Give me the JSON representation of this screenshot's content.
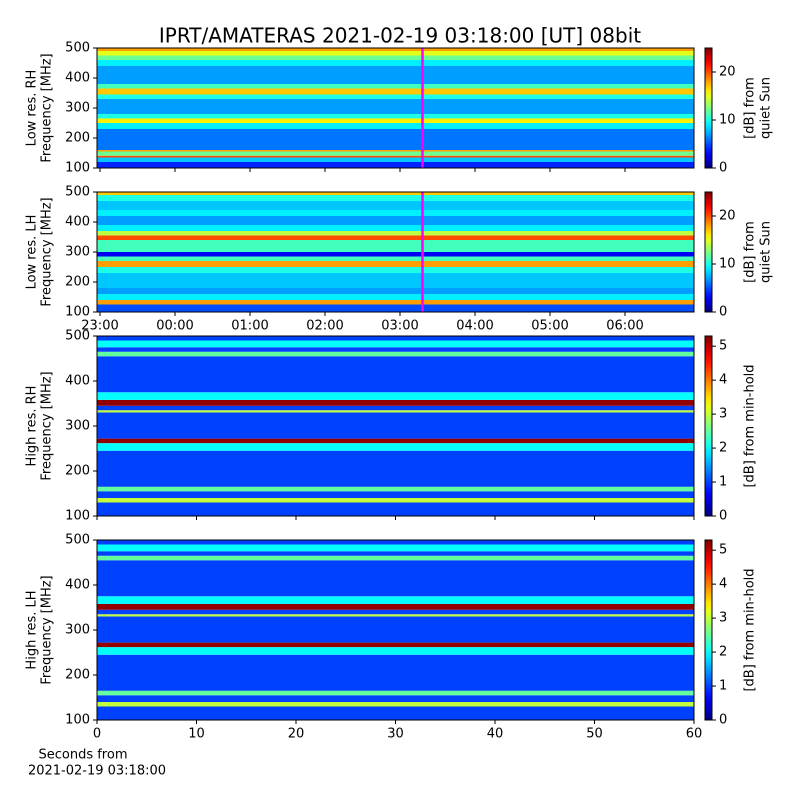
{
  "title": "IPRT/AMATERAS 2021-02-19 03:18:00 [UT]   08bit",
  "chart_data": [
    {
      "type": "spectrogram",
      "ylabel": [
        "Low res. RH",
        "Frequency [MHz]"
      ],
      "ylim": [
        100,
        500
      ],
      "yticks": [
        100,
        200,
        300,
        400,
        500
      ],
      "xlim": [
        22.96,
        30.92
      ],
      "xticks": [
        23,
        24,
        25,
        26,
        27,
        28,
        29,
        30
      ],
      "show_xticklabels": false,
      "freq_edges": [
        100,
        120,
        135,
        141,
        155,
        160,
        230,
        250,
        265,
        280,
        330,
        345,
        365,
        380,
        440,
        460,
        475,
        490,
        500
      ],
      "values": [
        4,
        8,
        20,
        12,
        18,
        6,
        9,
        16,
        10,
        7,
        10,
        17,
        11,
        7,
        9,
        12,
        15,
        18
      ],
      "markers": [
        {
          "x": 27.3,
          "color": "#ff00ff"
        }
      ],
      "cmap": "jet",
      "clim": [
        0,
        25
      ],
      "cticks": [
        0,
        10,
        20
      ],
      "clabel": [
        "[dB] from",
        "quiet Sun"
      ]
    },
    {
      "type": "spectrogram",
      "ylabel": [
        "Low res. LH",
        "Frequency [MHz]"
      ],
      "ylim": [
        100,
        500
      ],
      "yticks": [
        100,
        200,
        300,
        400,
        500
      ],
      "xlim": [
        22.96,
        30.92
      ],
      "xticks": [
        {
          "value": 23,
          "label": "23:00"
        },
        {
          "value": 24,
          "label": "00:00"
        },
        {
          "value": 25,
          "label": "01:00"
        },
        {
          "value": 26,
          "label": "02:00"
        },
        {
          "value": 27,
          "label": "03:00"
        },
        {
          "value": 28,
          "label": "04:00"
        },
        {
          "value": 29,
          "label": "05:00"
        },
        {
          "value": 30,
          "label": "06:00"
        }
      ],
      "show_xticklabels": true,
      "freq_edges": [
        100,
        125,
        140,
        160,
        180,
        230,
        250,
        270,
        285,
        300,
        340,
        355,
        370,
        390,
        420,
        440,
        470,
        490,
        500
      ],
      "values": [
        5,
        18,
        9,
        7,
        8,
        10,
        18,
        11,
        3,
        11,
        20,
        14,
        9,
        7,
        9,
        8,
        10,
        17
      ],
      "markers": [
        {
          "x": 27.3,
          "color": "#ff00ff"
        }
      ],
      "cmap": "jet",
      "clim": [
        0,
        25
      ],
      "cticks": [
        0,
        10,
        20
      ],
      "clabel": [
        "[dB] from",
        "quiet Sun"
      ]
    },
    {
      "type": "spectrogram",
      "ylabel": [
        "High res. RH",
        "Frequency [MHz]"
      ],
      "ylim": [
        100,
        500
      ],
      "yticks": [
        100,
        200,
        300,
        400,
        500
      ],
      "xlim": [
        0,
        60
      ],
      "xticks": [
        0,
        10,
        20,
        30,
        40,
        50,
        60
      ],
      "show_xticklabels": false,
      "freq_edges": [
        100,
        130,
        140,
        155,
        165,
        245,
        262,
        272,
        330,
        335,
        345,
        358,
        375,
        455,
        465,
        475,
        490,
        500
      ],
      "values": [
        1,
        3,
        1,
        2.5,
        1,
        2,
        5.2,
        1,
        3,
        1,
        5.2,
        2,
        1,
        2.5,
        1,
        2,
        1
      ],
      "cmap": "jet",
      "clim": [
        0,
        5.3
      ],
      "cticks": [
        0,
        1,
        2,
        3,
        4,
        5
      ],
      "clabel": [
        "[dB] from min-hold"
      ]
    },
    {
      "type": "spectrogram",
      "ylabel": [
        "High res. LH",
        "Frequency [MHz]"
      ],
      "ylim": [
        100,
        500
      ],
      "yticks": [
        100,
        200,
        300,
        400,
        500
      ],
      "xlim": [
        0,
        60
      ],
      "xticks": [
        0,
        10,
        20,
        30,
        40,
        50,
        60
      ],
      "show_xticklabels": true,
      "freq_edges": [
        100,
        130,
        140,
        155,
        165,
        245,
        262,
        272,
        330,
        335,
        345,
        358,
        375,
        455,
        465,
        475,
        490,
        500
      ],
      "values": [
        1,
        3,
        1,
        2.5,
        1,
        2,
        5.2,
        1,
        3,
        1,
        5.2,
        2,
        1,
        2.5,
        1,
        2,
        1
      ],
      "cmap": "jet",
      "clim": [
        0,
        5.3
      ],
      "cticks": [
        0,
        1,
        2,
        3,
        4,
        5
      ],
      "clabel": [
        "[dB] from min-hold"
      ],
      "xlabel": [
        "Seconds from",
        "2021-02-19 03:18:00"
      ]
    }
  ]
}
